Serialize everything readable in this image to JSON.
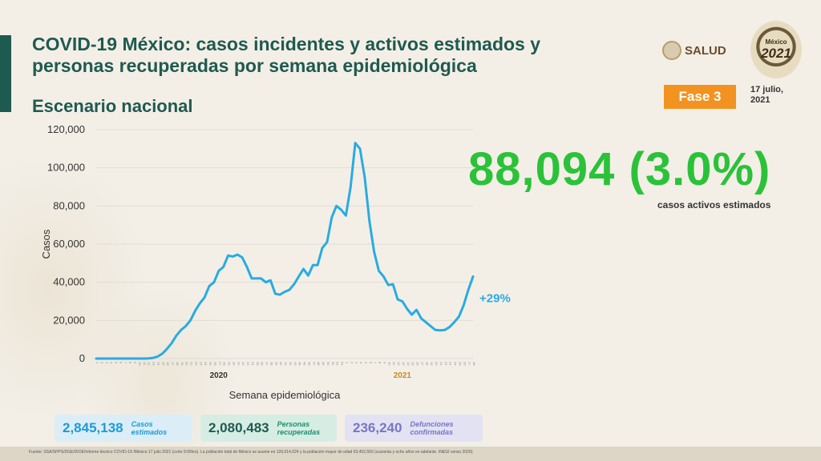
{
  "header": {
    "title": "COVID-19 México: casos incidentes y activos estimados y personas recuperadas por semana epidemiológica",
    "subtitle": "Escenario nacional",
    "logo_salud_text": "SALUD",
    "logo_2021_year": "2021",
    "logo_2021_text": "México",
    "phase": "Fase 3",
    "date": "17 julio, 2021"
  },
  "highlight": {
    "value": "88,094 (3.0%)",
    "caption": "casos activos estimados"
  },
  "colors": {
    "primary": "#1f5a50",
    "line": "#29abe2",
    "highlight_green": "#2bc23a",
    "phase_orange": "#f29321",
    "year_2021": "#c98a1e"
  },
  "chart_data": {
    "type": "line",
    "xlabel": "Semana epidemiológica",
    "ylabel": "Casos",
    "ylim": [
      0,
      120000
    ],
    "y_ticks": [
      0,
      20000,
      40000,
      60000,
      80000,
      100000,
      120000
    ],
    "y_tick_labels": [
      "0",
      "20,000",
      "40,000",
      "60,000",
      "80,000",
      "100,000",
      "120,000"
    ],
    "year_labels": [
      {
        "label": "2020",
        "week_index": 26
      },
      {
        "label": "2021",
        "week_index": 65
      }
    ],
    "annotation": "+29%",
    "series": [
      {
        "values": [
          0,
          0,
          0,
          0,
          0,
          0,
          0,
          0,
          0,
          0,
          0,
          50,
          300,
          1000,
          2500,
          5000,
          8000,
          12000,
          15000,
          17000,
          20000,
          25000,
          29000,
          32000,
          38000,
          40000,
          46000,
          48000,
          54000,
          53500,
          54500,
          53000,
          48000,
          42000,
          42000,
          42000,
          40000,
          41000,
          34000,
          33500,
          35000,
          36000,
          39000,
          43000,
          47000,
          43500,
          49000,
          49000,
          58000,
          61000,
          74000,
          80000,
          78000,
          75000,
          90000,
          113000,
          110000,
          95000,
          72000,
          56000,
          46000,
          43000,
          38500,
          39000,
          31000,
          30000,
          26000,
          23000,
          25500,
          21000,
          19000,
          17000,
          15000,
          14800,
          15000,
          16500,
          19000,
          22000,
          28000,
          36000,
          43000
        ]
      }
    ]
  },
  "stats": [
    {
      "value": "2,845,138",
      "label": "Casos estimados"
    },
    {
      "value": "2,080,483",
      "label": "Personas recuperadas"
    },
    {
      "value": "236,240",
      "label": "Defunciones confirmadas"
    }
  ],
  "footer": "Fuente: SSA/SPPS/DGE/DIOE/Informe técnico COVID-19 /México 17 julio 2021 (corte 9:00hrs). La población total de México se asume en 126,014,024 y la población mayor de edad 93,452,550 (cuarenta y ocho años en adelante. INEGI censo 2020)."
}
